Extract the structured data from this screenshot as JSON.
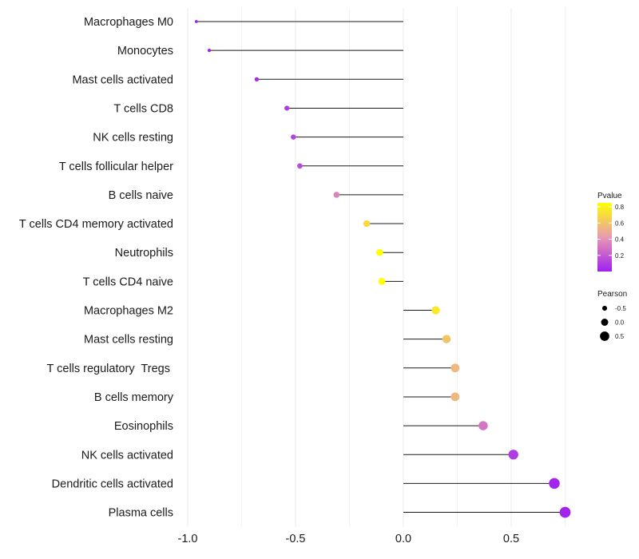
{
  "chart_data": {
    "type": "lollipop",
    "title": "",
    "xlabel": "",
    "ylabel": "",
    "xlim": [
      -1.1,
      0.83
    ],
    "x_ticks": [
      {
        "value": -1.0,
        "label": "-1.0"
      },
      {
        "value": -0.5,
        "label": "-0.5"
      },
      {
        "value": 0.0,
        "label": "0.0"
      },
      {
        "value": 0.5,
        "label": "0.5"
      }
    ],
    "x_minor_ticks": [
      -0.75,
      -0.25,
      0.25,
      0.75
    ],
    "baseline": 0,
    "categories": [
      "Macrophages M0",
      "Monocytes",
      "Mast cells activated",
      "T cells CD8",
      "NK cells resting",
      "T cells follicular helper",
      "B cells naive",
      "T cells CD4 memory activated",
      "Neutrophils",
      "T cells CD4 naive",
      "Macrophages M2",
      "Mast cells resting",
      "T cells regulatory  Tregs ",
      "B cells memory",
      "Eosinophils",
      "NK cells activated",
      "Dendritic cells activated",
      "Plasma cells"
    ],
    "pearson": [
      -0.96,
      -0.9,
      -0.68,
      -0.54,
      -0.51,
      -0.48,
      -0.31,
      -0.17,
      -0.11,
      -0.1,
      0.15,
      0.2,
      0.24,
      0.24,
      0.37,
      0.51,
      0.7,
      0.75
    ],
    "pvalue": [
      0.01,
      0.01,
      0.05,
      0.1,
      0.12,
      0.15,
      0.35,
      0.7,
      0.85,
      0.88,
      0.75,
      0.6,
      0.55,
      0.55,
      0.3,
      0.1,
      0.02,
      0.01
    ],
    "legend": {
      "color": {
        "title": "Pvalue",
        "range": [
          0.0,
          0.85
        ],
        "ticks": [
          {
            "value": 0.8,
            "label": "0.8"
          },
          {
            "value": 0.6,
            "label": "0.6"
          },
          {
            "value": 0.4,
            "label": "0.4"
          },
          {
            "value": 0.2,
            "label": "0.2"
          }
        ],
        "colors": {
          "low": "#a020f0",
          "mid": "#e89ab0",
          "high": "#ffff00"
        }
      },
      "size": {
        "title": "Pearson",
        "entries": [
          {
            "value": -0.5,
            "label": "-0.5"
          },
          {
            "value": 0.0,
            "label": "0.0"
          },
          {
            "value": 0.5,
            "label": "0.5"
          }
        ]
      }
    }
  }
}
